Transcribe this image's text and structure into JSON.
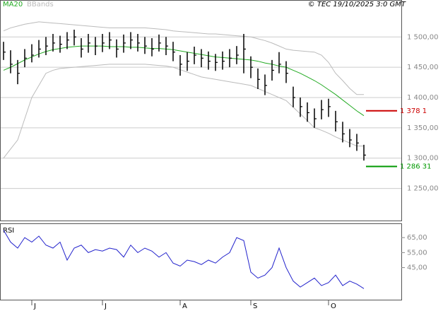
{
  "chart_data": {
    "type": "ohlc",
    "source": "© TEC 19/10/2025 3:0 GMT",
    "categories": [
      null,
      null,
      null,
      null,
      "J",
      null,
      null,
      null,
      null,
      null,
      null,
      null,
      null,
      null,
      "J",
      null,
      null,
      null,
      null,
      null,
      null,
      null,
      null,
      null,
      null,
      "A",
      null,
      null,
      null,
      null,
      null,
      null,
      null,
      null,
      null,
      "S",
      null,
      null,
      null,
      null,
      null,
      null,
      null,
      null,
      null,
      null,
      "O",
      null,
      null,
      null,
      null,
      null
    ],
    "price": {
      "color": "#000000",
      "high": [
        1492,
        1478,
        1462,
        1480,
        1488,
        1495,
        1500,
        1505,
        1502,
        1508,
        1512,
        1498,
        1505,
        1500,
        1505,
        1508,
        1496,
        1504,
        1508,
        1505,
        1500,
        1498,
        1504,
        1500,
        1492,
        1470,
        1475,
        1484,
        1480,
        1476,
        1472,
        1476,
        1480,
        1485,
        1505,
        1468,
        1448,
        1438,
        1462,
        1475,
        1460,
        1418,
        1400,
        1392,
        1382,
        1396,
        1398,
        1378,
        1360,
        1348,
        1340,
        1322
      ],
      "low": [
        1462,
        1440,
        1422,
        1450,
        1458,
        1466,
        1470,
        1476,
        1474,
        1480,
        1486,
        1466,
        1474,
        1470,
        1475,
        1480,
        1466,
        1474,
        1480,
        1476,
        1472,
        1468,
        1476,
        1470,
        1460,
        1436,
        1444,
        1455,
        1450,
        1446,
        1444,
        1446,
        1450,
        1455,
        1440,
        1432,
        1414,
        1404,
        1428,
        1440,
        1424,
        1384,
        1368,
        1360,
        1350,
        1364,
        1368,
        1344,
        1326,
        1318,
        1312,
        1296
      ],
      "close": [
        1475,
        1455,
        1440,
        1465,
        1470,
        1480,
        1485,
        1490,
        1488,
        1495,
        1500,
        1480,
        1490,
        1485,
        1490,
        1495,
        1480,
        1490,
        1495,
        1490,
        1485,
        1480,
        1490,
        1485,
        1475,
        1455,
        1460,
        1470,
        1465,
        1460,
        1458,
        1460,
        1465,
        1470,
        1480,
        1450,
        1430,
        1420,
        1445,
        1455,
        1440,
        1400,
        1385,
        1375,
        1365,
        1380,
        1385,
        1360,
        1340,
        1330,
        1325,
        1305
      ]
    },
    "series": [
      {
        "name": "MA20",
        "color": "#22aa22",
        "values": [
          1445,
          1450,
          1456,
          1462,
          1467,
          1472,
          1476,
          1479,
          1481,
          1483,
          1484,
          1485,
          1485,
          1485,
          1485,
          1484,
          1484,
          1484,
          1483,
          1483,
          1482,
          1481,
          1481,
          1480,
          1479,
          1477,
          1475,
          1473,
          1471,
          1469,
          1467,
          1466,
          1465,
          1464,
          1463,
          1462,
          1460,
          1457,
          1455,
          1452,
          1450,
          1445,
          1440,
          1434,
          1428,
          1421,
          1413,
          1405,
          1396,
          1387,
          1378,
          1370
        ]
      },
      {
        "name": "BBands",
        "color": "#bbbbbb",
        "upper": [
          1510,
          1515,
          1518,
          1521,
          1523,
          1525,
          1524,
          1523,
          1522,
          1521,
          1520,
          1519,
          1518,
          1517,
          1516,
          1515,
          1515,
          1515,
          1515,
          1515,
          1515,
          1514,
          1513,
          1512,
          1510,
          1509,
          1508,
          1507,
          1506,
          1505,
          1505,
          1504,
          1503,
          1502,
          1501,
          1500,
          1497,
          1494,
          1490,
          1485,
          1480,
          1478,
          1477,
          1476,
          1475,
          1470,
          1458,
          1440,
          1428,
          1415,
          1405,
          1405
        ],
        "lower": [
          1300,
          1315,
          1330,
          1365,
          1400,
          1420,
          1440,
          1445,
          1448,
          1449,
          1450,
          1451,
          1452,
          1453,
          1454,
          1455,
          1455,
          1455,
          1455,
          1455,
          1455,
          1454,
          1453,
          1452,
          1450,
          1446,
          1442,
          1438,
          1434,
          1432,
          1430,
          1428,
          1426,
          1424,
          1422,
          1420,
          1415,
          1410,
          1405,
          1400,
          1395,
          1384,
          1373,
          1362,
          1350,
          1346,
          1341,
          1335,
          1330,
          1325,
          1320,
          1320
        ]
      }
    ],
    "levels": [
      {
        "value": 1378.1,
        "label": "1 378 1",
        "color": "#cc0000"
      },
      {
        "value": 1286.31,
        "label": "1 286 31",
        "color": "#009900"
      }
    ],
    "ylim": [
      1197,
      1561
    ],
    "yticks": [
      {
        "value": 1250,
        "label": "1 250,00"
      },
      {
        "value": 1300,
        "label": "1 300,00"
      },
      {
        "value": 1350,
        "label": "1 350,00"
      },
      {
        "value": 1400,
        "label": "1 400,00"
      },
      {
        "value": 1450,
        "label": "1 450,00"
      },
      {
        "value": 1500,
        "label": "1 500,00"
      }
    ],
    "rsi": {
      "title": "RSI",
      "color": "#2222cc",
      "values": [
        70,
        62,
        58,
        65,
        62,
        66,
        60,
        58,
        62,
        50,
        58,
        60,
        55,
        57,
        56,
        58,
        57,
        52,
        60,
        55,
        58,
        56,
        52,
        55,
        48,
        46,
        50,
        49,
        47,
        50,
        48,
        52,
        55,
        65,
        63,
        42,
        38,
        40,
        45,
        58,
        45,
        36,
        32,
        35,
        38,
        33,
        35,
        40,
        33,
        36,
        34,
        31
      ],
      "ylim": [
        23.6,
        74.5
      ],
      "yticks": [
        {
          "value": 45,
          "label": "45,00"
        },
        {
          "value": 55,
          "label": "55,00"
        },
        {
          "value": 65,
          "label": "65,00"
        }
      ]
    }
  }
}
